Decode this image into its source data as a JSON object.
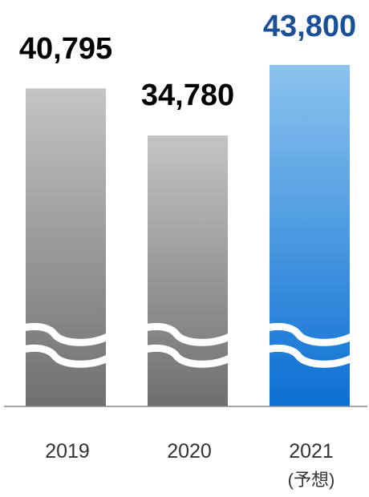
{
  "chart_data": {
    "type": "bar",
    "categories": [
      "2019",
      "2020",
      "2021"
    ],
    "category_sublabels": [
      "",
      "",
      "(予想)"
    ],
    "values": [
      40795,
      34780,
      43800
    ],
    "value_labels": [
      "40,795",
      "34,780",
      "43,800"
    ],
    "axis_break": true,
    "title": "",
    "xlabel": "",
    "ylabel": ""
  },
  "colors": {
    "actual_bar_top": "#c4c4c4",
    "actual_bar_bottom": "#6f6f6f",
    "forecast_bar_top": "#8cc3ee",
    "forecast_bar_bottom": "#0b6fd3",
    "actual_value_text": "#000000",
    "forecast_value_text": "#1a4f9a",
    "category_text": "#333333",
    "baseline": "#888888"
  }
}
